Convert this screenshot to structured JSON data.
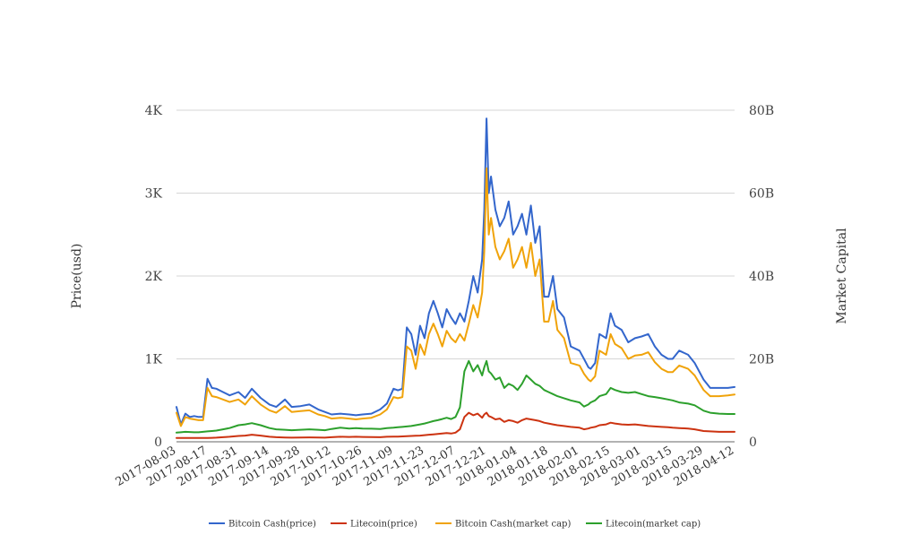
{
  "chart_data": {
    "type": "line",
    "title": "",
    "ylabel_left": "Price(usd)",
    "ylabel_right": "Market Capital",
    "y_left_ticks": [
      "0",
      "1K",
      "2K",
      "3K",
      "4K"
    ],
    "y_right_ticks": [
      "0",
      "20B",
      "40B",
      "60B",
      "80B"
    ],
    "ylim_left": [
      0,
      4000
    ],
    "ylim_right": [
      0,
      80000000000
    ],
    "x_tick_labels": [
      "2017-08-03",
      "2017-08-17",
      "2017-08-31",
      "2017-09-14",
      "2017-09-28",
      "2017-10-12",
      "2017-10-26",
      "2017-11-09",
      "2017-11-23",
      "2017-12-07",
      "2017-12-21",
      "2018-01-04",
      "2018-01-18",
      "2018-02-01",
      "2018-02-15",
      "2018-03-01",
      "2018-03-15",
      "2018-03-29",
      "2018-04-12"
    ],
    "grid": true,
    "legend_position": "bottom",
    "x": [
      "2017-08-03",
      "2017-08-05",
      "2017-08-07",
      "2017-08-09",
      "2017-08-11",
      "2017-08-13",
      "2017-08-15",
      "2017-08-17",
      "2017-08-19",
      "2017-08-21",
      "2017-08-24",
      "2017-08-27",
      "2017-08-31",
      "2017-09-03",
      "2017-09-06",
      "2017-09-10",
      "2017-09-14",
      "2017-09-17",
      "2017-09-21",
      "2017-09-24",
      "2017-09-28",
      "2017-10-02",
      "2017-10-06",
      "2017-10-09",
      "2017-10-12",
      "2017-10-16",
      "2017-10-20",
      "2017-10-23",
      "2017-10-26",
      "2017-10-30",
      "2017-11-03",
      "2017-11-06",
      "2017-11-09",
      "2017-11-11",
      "2017-11-13",
      "2017-11-15",
      "2017-11-17",
      "2017-11-19",
      "2017-11-21",
      "2017-11-23",
      "2017-11-25",
      "2017-11-27",
      "2017-11-29",
      "2017-12-01",
      "2017-12-03",
      "2017-12-05",
      "2017-12-07",
      "2017-12-09",
      "2017-12-11",
      "2017-12-13",
      "2017-12-15",
      "2017-12-17",
      "2017-12-19",
      "2017-12-20",
      "2017-12-21",
      "2017-12-22",
      "2017-12-23",
      "2017-12-25",
      "2017-12-27",
      "2017-12-29",
      "2017-12-31",
      "2018-01-02",
      "2018-01-04",
      "2018-01-06",
      "2018-01-08",
      "2018-01-10",
      "2018-01-12",
      "2018-01-14",
      "2018-01-16",
      "2018-01-18",
      "2018-01-20",
      "2018-01-22",
      "2018-01-25",
      "2018-01-28",
      "2018-02-01",
      "2018-02-03",
      "2018-02-05",
      "2018-02-06",
      "2018-02-08",
      "2018-02-10",
      "2018-02-13",
      "2018-02-15",
      "2018-02-17",
      "2018-02-20",
      "2018-02-23",
      "2018-02-26",
      "2018-03-01",
      "2018-03-04",
      "2018-03-07",
      "2018-03-10",
      "2018-03-13",
      "2018-03-15",
      "2018-03-18",
      "2018-03-22",
      "2018-03-25",
      "2018-03-29",
      "2018-04-01",
      "2018-04-05",
      "2018-04-09",
      "2018-04-12"
    ],
    "series": [
      {
        "name": "Bitcoin Cash(price)",
        "axis": "left",
        "color": "#3366cc",
        "values": [
          420,
          210,
          340,
          300,
          310,
          300,
          300,
          760,
          650,
          640,
          600,
          560,
          600,
          530,
          640,
          530,
          450,
          420,
          510,
          420,
          430,
          450,
          390,
          360,
          330,
          340,
          330,
          320,
          330,
          340,
          390,
          460,
          640,
          620,
          640,
          1380,
          1300,
          1050,
          1400,
          1250,
          1550,
          1700,
          1550,
          1380,
          1600,
          1500,
          1420,
          1550,
          1450,
          1700,
          2000,
          1800,
          2200,
          2800,
          3900,
          3000,
          3200,
          2800,
          2600,
          2700,
          2900,
          2500,
          2600,
          2750,
          2500,
          2850,
          2400,
          2600,
          1750,
          1750,
          2000,
          1600,
          1500,
          1150,
          1100,
          1000,
          900,
          880,
          950,
          1300,
          1250,
          1550,
          1400,
          1350,
          1200,
          1250,
          1270,
          1300,
          1150,
          1050,
          1000,
          1000,
          1100,
          1050,
          950,
          750,
          650,
          650,
          650,
          660
        ]
      },
      {
        "name": "Litecoin(price)",
        "axis": "left",
        "color": "#cc3311",
        "values": [
          45,
          45,
          47,
          46,
          45,
          45,
          46,
          47,
          48,
          50,
          55,
          60,
          70,
          75,
          85,
          75,
          60,
          55,
          52,
          50,
          52,
          53,
          52,
          50,
          55,
          60,
          58,
          60,
          58,
          57,
          55,
          60,
          62,
          63,
          65,
          67,
          70,
          72,
          75,
          80,
          85,
          90,
          95,
          100,
          105,
          100,
          110,
          150,
          300,
          350,
          320,
          340,
          290,
          330,
          350,
          310,
          300,
          270,
          280,
          240,
          260,
          250,
          230,
          260,
          280,
          270,
          260,
          250,
          230,
          220,
          210,
          200,
          190,
          180,
          170,
          150,
          160,
          170,
          180,
          200,
          210,
          230,
          220,
          210,
          205,
          210,
          200,
          190,
          185,
          180,
          175,
          170,
          165,
          160,
          150,
          130,
          125,
          120,
          120,
          120
        ]
      },
      {
        "name": "Bitcoin Cash(market cap)",
        "axis": "right",
        "color": "#f0a30a",
        "values": [
          7000000000,
          3800000000,
          6000000000,
          5600000000,
          5400000000,
          5200000000,
          5200000000,
          13000000000,
          11000000000,
          10800000000,
          10200000000,
          9600000000,
          10200000000,
          9000000000,
          11000000000,
          9000000000,
          7600000000,
          7000000000,
          8600000000,
          7200000000,
          7400000000,
          7600000000,
          6600000000,
          6200000000,
          5600000000,
          5800000000,
          5600000000,
          5400000000,
          5600000000,
          5800000000,
          6600000000,
          7800000000,
          10800000000,
          10500000000,
          10800000000,
          23000000000,
          22000000000,
          17600000000,
          23500000000,
          21000000000,
          26000000000,
          28500000000,
          26000000000,
          23000000000,
          26800000000,
          25000000000,
          24000000000,
          26000000000,
          24400000000,
          28500000000,
          33000000000,
          30000000000,
          36000000000,
          46000000000,
          66000000000,
          50000000000,
          54000000000,
          47000000000,
          44000000000,
          46000000000,
          49000000000,
          42000000000,
          44000000000,
          47000000000,
          42000000000,
          48000000000,
          40000000000,
          44000000000,
          29000000000,
          29000000000,
          34000000000,
          27000000000,
          25000000000,
          19000000000,
          18400000000,
          16400000000,
          15000000000,
          14600000000,
          15800000000,
          22000000000,
          21000000000,
          26000000000,
          23600000000,
          22600000000,
          20000000000,
          20800000000,
          21000000000,
          21600000000,
          19200000000,
          17600000000,
          16800000000,
          16800000000,
          18400000000,
          17600000000,
          16000000000,
          12500000000,
          11000000000,
          11000000000,
          11200000000,
          11400000000
        ]
      },
      {
        "name": "Litecoin(market cap)",
        "axis": "right",
        "color": "#2ca02c",
        "values": [
          2200000000,
          2300000000,
          2400000000,
          2350000000,
          2300000000,
          2300000000,
          2400000000,
          2500000000,
          2600000000,
          2700000000,
          3000000000,
          3300000000,
          4000000000,
          4200000000,
          4500000000,
          4000000000,
          3300000000,
          3000000000,
          2900000000,
          2800000000,
          2900000000,
          3000000000,
          2900000000,
          2800000000,
          3100000000,
          3400000000,
          3200000000,
          3300000000,
          3200000000,
          3150000000,
          3100000000,
          3300000000,
          3400000000,
          3500000000,
          3600000000,
          3700000000,
          3800000000,
          4000000000,
          4200000000,
          4400000000,
          4700000000,
          5000000000,
          5200000000,
          5500000000,
          5800000000,
          5500000000,
          6000000000,
          8300000000,
          17000000000,
          19500000000,
          17000000000,
          18500000000,
          16000000000,
          18000000000,
          19500000000,
          17000000000,
          16500000000,
          15000000000,
          15500000000,
          13000000000,
          14000000000,
          13500000000,
          12500000000,
          14000000000,
          16000000000,
          15000000000,
          14000000000,
          13500000000,
          12500000000,
          12000000000,
          11500000000,
          11000000000,
          10500000000,
          10000000000,
          9500000000,
          8500000000,
          9000000000,
          9500000000,
          10000000000,
          11000000000,
          11500000000,
          13000000000,
          12500000000,
          12000000000,
          11800000000,
          12000000000,
          11500000000,
          11000000000,
          10800000000,
          10500000000,
          10200000000,
          10000000000,
          9500000000,
          9200000000,
          8800000000,
          7500000000,
          7000000000,
          6800000000,
          6700000000,
          6700000000
        ]
      }
    ]
  }
}
